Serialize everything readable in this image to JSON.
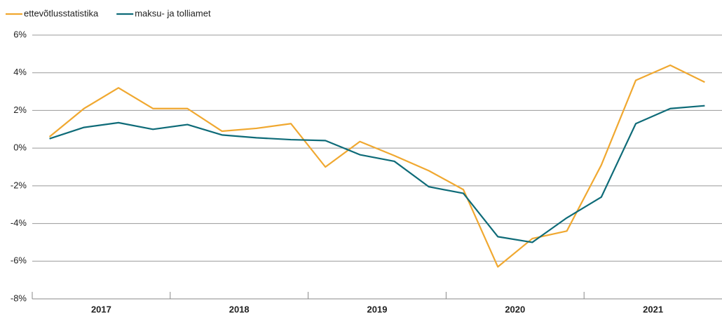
{
  "chart_data": {
    "type": "line",
    "categories": [
      "2017",
      "2018",
      "2019",
      "2020",
      "2021"
    ],
    "series": [
      {
        "name": "ettevõtlusstatistika",
        "color": "#f0a830",
        "values": [
          [
            0.6,
            2.1,
            3.2,
            2.1
          ],
          [
            2.1,
            0.9,
            1.05,
            1.3
          ],
          [
            -1.0,
            0.35,
            -0.4,
            -1.2
          ],
          [
            -2.2,
            -6.3,
            -4.8,
            -4.4
          ],
          [
            -0.9,
            3.6,
            4.4,
            3.5
          ]
        ]
      },
      {
        "name": "maksu- ja tolliamet",
        "color": "#0e6b78",
        "values": [
          [
            0.5,
            1.1,
            1.35,
            1.0
          ],
          [
            1.25,
            0.7,
            0.55,
            0.45
          ],
          [
            0.4,
            -0.35,
            -0.7,
            -2.05
          ],
          [
            -2.4,
            -4.7,
            -5.0,
            -3.7
          ],
          [
            -2.6,
            1.3,
            2.1,
            2.25
          ]
        ]
      }
    ],
    "ylim": [
      -8,
      6
    ],
    "yticks": [
      {
        "value": -8,
        "label": "-8%"
      },
      {
        "value": -6,
        "label": "-6%"
      },
      {
        "value": -4,
        "label": "-4%"
      },
      {
        "value": -2,
        "label": "-2%"
      },
      {
        "value": 0,
        "label": "0%"
      },
      {
        "value": 2,
        "label": "2%"
      },
      {
        "value": 4,
        "label": "4%"
      },
      {
        "value": 6,
        "label": "6%"
      }
    ],
    "grid": true,
    "legend": "top-left"
  }
}
